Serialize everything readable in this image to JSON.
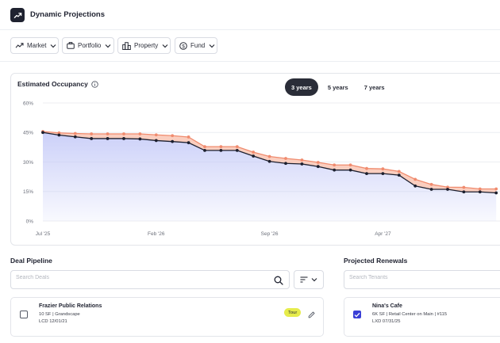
{
  "app": {
    "title": "Dynamic Projections",
    "logo_icon": "trend-up-icon"
  },
  "filters": [
    {
      "label": "Market",
      "icon": "trend-line-icon"
    },
    {
      "label": "Portfolio",
      "icon": "briefcase-icon"
    },
    {
      "label": "Property",
      "icon": "buildings-icon"
    },
    {
      "label": "Fund",
      "icon": "dollar-circle-icon"
    }
  ],
  "occupancy": {
    "title": "Estimated Occupancy",
    "tabs": [
      {
        "label": "3 years",
        "active": true
      },
      {
        "label": "5 years",
        "active": false
      },
      {
        "label": "7 years",
        "active": false
      }
    ]
  },
  "chart_data": {
    "type": "area",
    "title": "Estimated Occupancy",
    "y_ticks": [
      "0%",
      "15%",
      "30%",
      "45%",
      "60%"
    ],
    "ylim": [
      0,
      60
    ],
    "x_tick_labels": [
      "Jul '25",
      "Feb '26",
      "Sep '26",
      "Apr '27"
    ],
    "x_tick_index": [
      0,
      7,
      14,
      21
    ],
    "grid": true,
    "colors": {
      "upper": "#f08b6e",
      "lower": "#1c1f2e",
      "fill": "#c9cef8",
      "band": "#f9c6b4"
    },
    "series": [
      {
        "values": [
          45.5,
          44.8,
          44.5,
          44.3,
          44.3,
          44.3,
          44.3,
          43.8,
          43.4,
          42.7,
          37.8,
          37.8,
          37.8,
          35.0,
          32.8,
          31.8,
          31.0,
          29.8,
          28.5,
          28.5,
          26.7,
          26.5,
          25.2,
          21.2,
          18.6,
          17.2,
          17.1,
          16.3,
          16.3
        ]
      },
      {
        "values": [
          45.0,
          43.7,
          42.8,
          41.9,
          41.9,
          41.9,
          41.7,
          40.9,
          40.4,
          39.8,
          35.9,
          35.9,
          35.9,
          33.0,
          30.3,
          29.3,
          29.0,
          27.7,
          25.9,
          25.9,
          24.1,
          24.1,
          23.3,
          17.8,
          16.1,
          16.1,
          14.8,
          14.8,
          14.3
        ]
      }
    ]
  },
  "deal_pipeline": {
    "title": "Deal Pipeline",
    "search_placeholder": "Search Deals",
    "items": [
      {
        "name": "Frazier Public Relations",
        "details": "10 SF | Grandscape",
        "lcd": "LCD 12/01/21",
        "badge": "Tour",
        "checked": false
      }
    ]
  },
  "renewals": {
    "title": "Projected Renewals",
    "search_placeholder": "Search Tenants",
    "items": [
      {
        "name": "Nina's Cafe",
        "details": "6K SF | Retail Center on Main | #115",
        "lxd": "LXD 07/31/25",
        "checked": true
      }
    ]
  }
}
